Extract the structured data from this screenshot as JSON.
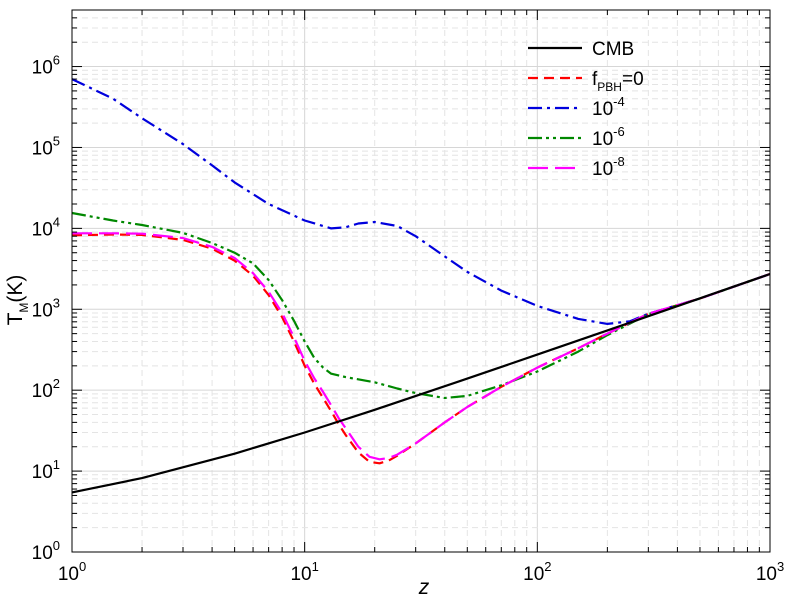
{
  "chart_data": {
    "type": "line",
    "xscale": "log",
    "yscale": "log",
    "xlim": [
      1,
      1000
    ],
    "ylim": [
      1,
      5000000
    ],
    "xlabel": "z",
    "ylabel": {
      "base": "T",
      "sub": "M",
      "rest": "(K)"
    },
    "xticks": [
      {
        "base": "10",
        "exp": "0",
        "value": 1
      },
      {
        "base": "10",
        "exp": "1",
        "value": 10
      },
      {
        "base": "10",
        "exp": "2",
        "value": 100
      },
      {
        "base": "10",
        "exp": "3",
        "value": 1000
      }
    ],
    "yticks": [
      {
        "base": "10",
        "exp": "0",
        "value": 1
      },
      {
        "base": "10",
        "exp": "1",
        "value": 10
      },
      {
        "base": "10",
        "exp": "2",
        "value": 100
      },
      {
        "base": "10",
        "exp": "3",
        "value": 1000
      },
      {
        "base": "10",
        "exp": "4",
        "value": 10000
      },
      {
        "base": "10",
        "exp": "5",
        "value": 100000
      },
      {
        "base": "10",
        "exp": "6",
        "value": 1000000
      }
    ],
    "grid": true,
    "legend_position": "top-right",
    "series": [
      {
        "name": "CMB",
        "color": "#000000",
        "dash": "solid",
        "points": [
          [
            1,
            5.45
          ],
          [
            2,
            8.2
          ],
          [
            5,
            16.4
          ],
          [
            10,
            30
          ],
          [
            20,
            57.2
          ],
          [
            50,
            139
          ],
          [
            100,
            275
          ],
          [
            200,
            548
          ],
          [
            500,
            1365
          ],
          [
            1000,
            2728
          ]
        ]
      },
      {
        "name": "f_PBH=0",
        "label": {
          "base": "f",
          "sub": "PBH",
          "rest": "=0"
        },
        "color": "#ff0000",
        "dash": "dashed",
        "points": [
          [
            1,
            8200
          ],
          [
            1.5,
            8400
          ],
          [
            2,
            8300
          ],
          [
            3,
            7200
          ],
          [
            4,
            5600
          ],
          [
            5,
            4000
          ],
          [
            6,
            2600
          ],
          [
            7,
            1500
          ],
          [
            8,
            800
          ],
          [
            9,
            400
          ],
          [
            10,
            200
          ],
          [
            11,
            120
          ],
          [
            12,
            80
          ],
          [
            13,
            55
          ],
          [
            14,
            38
          ],
          [
            15,
            28
          ],
          [
            17,
            17
          ],
          [
            19,
            13
          ],
          [
            21,
            12.5
          ],
          [
            23,
            13.5
          ],
          [
            25,
            15.5
          ],
          [
            30,
            22
          ],
          [
            40,
            40
          ],
          [
            50,
            62
          ],
          [
            70,
            110
          ],
          [
            100,
            190
          ],
          [
            150,
            330
          ],
          [
            200,
            500
          ],
          [
            300,
            880
          ],
          [
            500,
            1360
          ],
          [
            1000,
            2728
          ]
        ]
      },
      {
        "name": "10^-4",
        "label": {
          "base": "10",
          "exp": "-4"
        },
        "color": "#0000dd",
        "dash": "dashdot",
        "points": [
          [
            1,
            700000
          ],
          [
            1.5,
            400000
          ],
          [
            2,
            230000
          ],
          [
            3,
            110000
          ],
          [
            4,
            60000
          ],
          [
            5,
            37000
          ],
          [
            7,
            20000
          ],
          [
            10,
            12500
          ],
          [
            13,
            10000
          ],
          [
            15,
            10300
          ],
          [
            17,
            11500
          ],
          [
            20,
            12000
          ],
          [
            25,
            10700
          ],
          [
            30,
            8000
          ],
          [
            40,
            4500
          ],
          [
            50,
            2900
          ],
          [
            70,
            1700
          ],
          [
            100,
            1100
          ],
          [
            150,
            760
          ],
          [
            200,
            660
          ],
          [
            250,
            710
          ],
          [
            300,
            880
          ],
          [
            500,
            1360
          ],
          [
            1000,
            2728
          ]
        ]
      },
      {
        "name": "10^-6",
        "label": {
          "base": "10",
          "exp": "-6"
        },
        "color": "#008800",
        "dash": "dashdotdot",
        "points": [
          [
            1,
            15500
          ],
          [
            1.5,
            12500
          ],
          [
            2,
            11000
          ],
          [
            3,
            8800
          ],
          [
            4,
            6600
          ],
          [
            5,
            5000
          ],
          [
            6,
            3700
          ],
          [
            7,
            2300
          ],
          [
            8,
            1300
          ],
          [
            9,
            720
          ],
          [
            10,
            400
          ],
          [
            11,
            250
          ],
          [
            12,
            190
          ],
          [
            13,
            160
          ],
          [
            15,
            145
          ],
          [
            20,
            125
          ],
          [
            25,
            105
          ],
          [
            30,
            92
          ],
          [
            40,
            80
          ],
          [
            50,
            85
          ],
          [
            70,
            115
          ],
          [
            100,
            170
          ],
          [
            150,
            300
          ],
          [
            200,
            480
          ],
          [
            300,
            870
          ],
          [
            500,
            1360
          ],
          [
            1000,
            2728
          ]
        ]
      },
      {
        "name": "10^-8",
        "label": {
          "base": "10",
          "exp": "-8"
        },
        "color": "#ff00ff",
        "dash": "longdash",
        "points": [
          [
            1,
            8700
          ],
          [
            1.5,
            8700
          ],
          [
            2,
            8600
          ],
          [
            3,
            7600
          ],
          [
            4,
            5900
          ],
          [
            5,
            4300
          ],
          [
            6,
            2800
          ],
          [
            7,
            1650
          ],
          [
            8,
            900
          ],
          [
            9,
            450
          ],
          [
            10,
            230
          ],
          [
            11,
            140
          ],
          [
            12,
            95
          ],
          [
            13,
            65
          ],
          [
            14,
            45
          ],
          [
            15,
            34
          ],
          [
            17,
            20
          ],
          [
            19,
            15
          ],
          [
            21,
            14
          ],
          [
            23,
            14.5
          ],
          [
            25,
            16
          ],
          [
            30,
            22
          ],
          [
            40,
            40
          ],
          [
            50,
            62
          ],
          [
            70,
            110
          ],
          [
            100,
            190
          ],
          [
            150,
            330
          ],
          [
            200,
            500
          ],
          [
            300,
            880
          ],
          [
            500,
            1360
          ],
          [
            1000,
            2728
          ]
        ]
      }
    ]
  }
}
